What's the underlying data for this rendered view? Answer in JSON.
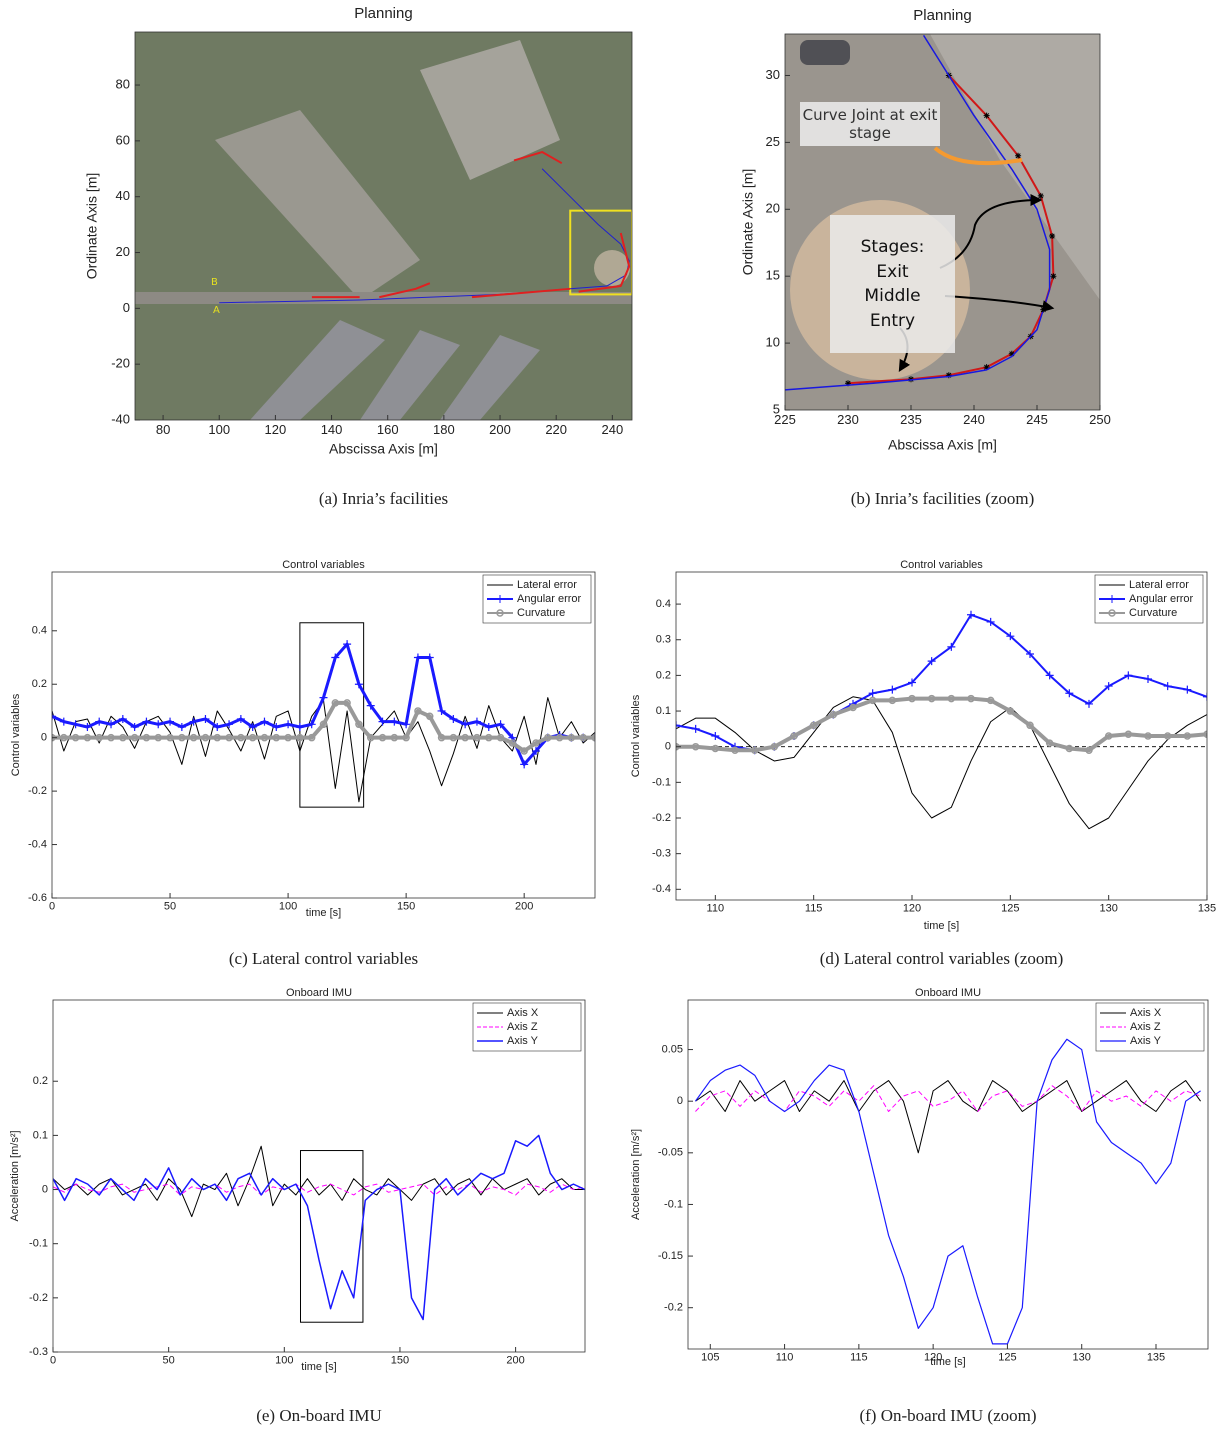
{
  "chart_data": [
    {
      "type": "line",
      "title": "Planning",
      "xlabel": "Abscissa Axis [m]",
      "ylabel": "Ordinate Axis [m]",
      "caption": "(a)  Inria’s facilities",
      "xlim": [
        70,
        247
      ],
      "ylim": [
        -40,
        99
      ],
      "xticks": [
        80,
        100,
        120,
        140,
        160,
        180,
        200,
        220,
        240
      ],
      "yticks": [
        -40,
        -20,
        0,
        20,
        40,
        60,
        80
      ],
      "annotations": [
        "A",
        "B"
      ],
      "highlight_box": {
        "color": "#f0e020",
        "x": [
          225,
          247
        ],
        "y": [
          5,
          35
        ]
      },
      "series": [
        {
          "color": "#2020d0",
          "linewidth": 1,
          "x": [
            100,
            150,
            200,
            225,
            238,
            245,
            246,
            243,
            235,
            225,
            215
          ],
          "values": [
            2,
            3,
            5,
            7,
            8,
            12,
            17,
            23,
            30,
            40,
            50
          ]
        },
        {
          "color": "#e02020",
          "linewidth": 2,
          "x": [
            133,
            150,
            null,
            157,
            170,
            175,
            null,
            190,
            225,
            null,
            228,
            243,
            246,
            243,
            null,
            205,
            215,
            222
          ],
          "values": [
            4,
            4,
            null,
            4,
            7,
            9,
            null,
            4,
            7,
            null,
            6,
            8,
            15,
            27,
            null,
            53,
            56,
            52
          ]
        }
      ]
    },
    {
      "type": "line",
      "title": "Planning",
      "xlabel": "Abscissa Axis [m]",
      "ylabel": "Ordinate Axis [m]",
      "caption": "(b)  Inria’s facilities (zoom)",
      "xlim": [
        225,
        250
      ],
      "ylim": [
        5,
        33.1
      ],
      "xticks": [
        225,
        230,
        235,
        240,
        245,
        250
      ],
      "yticks": [
        5,
        10,
        15,
        20,
        25,
        30
      ],
      "annotations": [
        "Curve Joint at exit stage",
        "Stages:",
        "Exit",
        "Middle",
        "Entry"
      ],
      "series": [
        {
          "color": "#d01818",
          "linewidth": 2,
          "marker": "*",
          "x": [
            230,
            235,
            238,
            241,
            243,
            244.5,
            245.5,
            246.3,
            246.2,
            245.3,
            243.5,
            241,
            238
          ],
          "values": [
            7,
            7.3,
            7.6,
            8.2,
            9.2,
            10.5,
            12.5,
            15,
            18,
            21,
            24,
            27,
            30
          ]
        },
        {
          "color": "#1818e0",
          "linewidth": 1.5,
          "x": [
            225,
            232,
            238,
            241,
            243,
            245,
            246,
            246,
            245,
            243,
            240,
            236
          ],
          "values": [
            6.5,
            7,
            7.5,
            8,
            9,
            11,
            14,
            17,
            20,
            23,
            27,
            33
          ]
        }
      ]
    },
    {
      "type": "line",
      "title": "Control variables",
      "xlabel": "time [s]",
      "ylabel": "Control variables",
      "caption": "(c)  Lateral control variables",
      "xlim": [
        0,
        230
      ],
      "ylim": [
        -0.6,
        0.62
      ],
      "xticks": [
        0,
        50,
        100,
        150,
        200
      ],
      "yticks": [
        -0.6,
        -0.4,
        -0.2,
        0,
        0.2,
        0.4
      ],
      "legend": "upper right",
      "highlight_box": {
        "color": "#000000",
        "x": [
          105,
          132
        ],
        "y": [
          -0.26,
          0.43
        ]
      },
      "x": [
        0,
        5,
        10,
        15,
        20,
        25,
        30,
        35,
        40,
        45,
        50,
        55,
        60,
        65,
        70,
        75,
        80,
        85,
        90,
        95,
        100,
        105,
        110,
        115,
        120,
        125,
        130,
        135,
        140,
        145,
        150,
        155,
        160,
        165,
        170,
        175,
        180,
        185,
        190,
        195,
        200,
        205,
        210,
        215,
        220,
        225,
        230
      ],
      "series": [
        {
          "name": "Lateral error",
          "color": "#000000",
          "linewidth": 1,
          "values": [
            0.1,
            -0.05,
            0.06,
            0.07,
            -0.02,
            0.08,
            0.04,
            -0.04,
            0.06,
            0.08,
            0.02,
            -0.1,
            0.08,
            -0.07,
            0.1,
            0.03,
            -0.05,
            0.06,
            -0.08,
            0.08,
            0.1,
            -0.05,
            0.08,
            0.14,
            -0.19,
            0.1,
            -0.24,
            0.0,
            0.05,
            0.1,
            0.0,
            0.06,
            -0.05,
            -0.18,
            -0.06,
            0.08,
            -0.04,
            0.12,
            0.0,
            -0.05,
            0.08,
            -0.1,
            0.15,
            0.0,
            0.06,
            -0.02,
            0.02
          ]
        },
        {
          "name": "Angular error",
          "color": "#1a1aff",
          "linewidth": 3,
          "marker": "+",
          "values": [
            0.08,
            0.06,
            0.05,
            0.04,
            0.06,
            0.05,
            0.07,
            0.04,
            0.06,
            0.05,
            0.06,
            0.04,
            0.06,
            0.07,
            0.04,
            0.05,
            0.07,
            0.04,
            0.06,
            0.04,
            0.05,
            0.04,
            0.05,
            0.15,
            0.3,
            0.35,
            0.2,
            0.12,
            0.06,
            0.06,
            0.05,
            0.3,
            0.3,
            0.1,
            0.07,
            0.05,
            0.06,
            0.04,
            0.05,
            0.0,
            -0.1,
            -0.05,
            0.0,
            0.01,
            0.0,
            0.0,
            0.0
          ]
        },
        {
          "name": "Curvature",
          "color": "#999999",
          "linewidth": 4,
          "marker": "o",
          "values": [
            0,
            0,
            0,
            0,
            0,
            0,
            0,
            0,
            0,
            0,
            0,
            0,
            0,
            0,
            0,
            0,
            0,
            0,
            0,
            0,
            0,
            0,
            0,
            0.05,
            0.13,
            0.13,
            0.05,
            0,
            0,
            0,
            0,
            0.1,
            0.08,
            0,
            0,
            0,
            0,
            0,
            0,
            -0.02,
            -0.05,
            -0.02,
            0,
            0,
            0,
            0,
            0
          ]
        }
      ]
    },
    {
      "type": "line",
      "title": "Control variables",
      "xlabel": "time [s]",
      "ylabel": "Control variables",
      "caption": "(d)  Lateral control variables (zoom)",
      "xlim": [
        108,
        135
      ],
      "ylim": [
        -0.43,
        0.49
      ],
      "xticks": [
        110,
        115,
        120,
        125,
        130,
        135
      ],
      "yticks": [
        -0.4,
        -0.3,
        -0.2,
        -0.1,
        0,
        0.1,
        0.2,
        0.3,
        0.4
      ],
      "legend": "upper right",
      "x": [
        108,
        109,
        110,
        111,
        112,
        113,
        114,
        115,
        116,
        117,
        118,
        119,
        120,
        121,
        122,
        123,
        124,
        125,
        126,
        127,
        128,
        129,
        130,
        131,
        132,
        133,
        134,
        135
      ],
      "series": [
        {
          "name": "Lateral error",
          "color": "#000000",
          "linewidth": 1,
          "values": [
            0.05,
            0.08,
            0.08,
            0.04,
            -0.01,
            -0.04,
            -0.03,
            0.04,
            0.11,
            0.14,
            0.13,
            0.04,
            -0.13,
            -0.2,
            -0.17,
            -0.04,
            0.07,
            0.11,
            0.06,
            -0.05,
            -0.16,
            -0.23,
            -0.2,
            -0.12,
            -0.04,
            0.02,
            0.06,
            0.09
          ]
        },
        {
          "name": "Angular error",
          "color": "#1a1aff",
          "linewidth": 2,
          "marker": "+",
          "values": [
            0.06,
            0.05,
            0.03,
            0.0,
            -0.01,
            0.0,
            0.03,
            0.06,
            0.09,
            0.12,
            0.15,
            0.16,
            0.18,
            0.24,
            0.28,
            0.37,
            0.35,
            0.31,
            0.26,
            0.2,
            0.15,
            0.12,
            0.17,
            0.2,
            0.19,
            0.17,
            0.16,
            0.14
          ]
        },
        {
          "name": "Curvature",
          "color": "#999999",
          "linewidth": 4,
          "marker": "o",
          "values": [
            0,
            0,
            -0.005,
            -0.01,
            -0.01,
            0,
            0.03,
            0.06,
            0.09,
            0.11,
            0.13,
            0.13,
            0.135,
            0.135,
            0.135,
            0.135,
            0.13,
            0.1,
            0.06,
            0.01,
            -0.005,
            -0.01,
            0.03,
            0.035,
            0.03,
            0.03,
            0.03,
            0.035
          ]
        }
      ]
    },
    {
      "type": "line",
      "title": "Onboard IMU",
      "xlabel": "time [s]",
      "ylabel": "Acceleration [m/s²]",
      "caption": "(e)  On-board IMU",
      "xlim": [
        0,
        230
      ],
      "ylim": [
        -0.3,
        0.35
      ],
      "xticks": [
        0,
        50,
        100,
        150,
        200
      ],
      "yticks": [
        -0.3,
        -0.2,
        -0.1,
        0,
        0.1,
        0.2
      ],
      "legend": "upper right",
      "highlight_box": {
        "color": "#000000",
        "x": [
          107,
          134
        ],
        "y": [
          -0.245,
          0.072
        ]
      },
      "x": [
        0,
        5,
        10,
        15,
        20,
        25,
        30,
        35,
        40,
        45,
        50,
        55,
        60,
        65,
        70,
        75,
        80,
        85,
        90,
        95,
        100,
        105,
        110,
        115,
        120,
        125,
        130,
        135,
        140,
        145,
        150,
        155,
        160,
        165,
        170,
        175,
        180,
        185,
        190,
        195,
        200,
        205,
        210,
        215,
        220,
        225,
        230
      ],
      "series": [
        {
          "name": "Axis X",
          "color": "#000000",
          "linewidth": 1,
          "values": [
            0.02,
            0,
            0.01,
            -0.01,
            0.01,
            0.02,
            -0.01,
            0.0,
            0.01,
            -0.02,
            0.02,
            0.0,
            -0.05,
            0.01,
            0.0,
            0.03,
            -0.03,
            0.02,
            0.08,
            -0.03,
            0.01,
            -0.01,
            0.02,
            -0.01,
            0.01,
            -0.02,
            0.02,
            0.0,
            -0.01,
            0.02,
            0.0,
            -0.02,
            0.01,
            0.02,
            -0.01,
            0.01,
            0.02,
            -0.01,
            0.02,
            0.0,
            0.01,
            0.02,
            -0.01,
            0.01,
            0.02,
            0.0,
            0.0
          ]
        },
        {
          "name": "Axis Z",
          "color": "#ff00ff",
          "linewidth": 1,
          "linestyle": "dashed",
          "values": [
            0.005,
            -0.005,
            0.01,
            0.0,
            -0.005,
            0.005,
            0.01,
            -0.005,
            0.0,
            0.005,
            0.01,
            -0.01,
            0.005,
            0.0,
            0.01,
            -0.005,
            0.005,
            0.01,
            -0.01,
            0.005,
            0.0,
            0.01,
            -0.005,
            0.005,
            0.01,
            0.0,
            -0.01,
            0.005,
            0.01,
            -0.005,
            0.0,
            0.005,
            0.01,
            -0.01,
            0.005,
            0.0,
            0.01,
            -0.005,
            0.005,
            0.0,
            -0.01,
            0.01,
            0.005,
            -0.005,
            0.01,
            0.0,
            0.005
          ]
        },
        {
          "name": "Axis Y",
          "color": "#1a1aff",
          "linewidth": 1.5,
          "values": [
            0.02,
            -0.02,
            0.02,
            0.01,
            -0.01,
            0.02,
            0.0,
            -0.02,
            0.02,
            0.0,
            0.04,
            -0.01,
            0.02,
            0.0,
            0.01,
            -0.02,
            0.02,
            0.03,
            -0.01,
            0.02,
            0.0,
            0.01,
            -0.03,
            -0.13,
            -0.22,
            -0.15,
            -0.2,
            -0.02,
            0.0,
            0.01,
            0.0,
            -0.2,
            -0.24,
            0.0,
            0.02,
            -0.01,
            0.01,
            0.03,
            0.02,
            0.03,
            0.09,
            0.08,
            0.1,
            0.03,
            0.0,
            0.01,
            0.0
          ]
        }
      ]
    },
    {
      "type": "line",
      "title": "Onboard IMU",
      "xlabel": "time [s]",
      "ylabel": "Acceleration [m/s²]",
      "caption": "(f)  On-board IMU (zoom)",
      "xlim": [
        103.5,
        138.5
      ],
      "ylim": [
        -0.24,
        0.098
      ],
      "xticks": [
        105,
        110,
        115,
        120,
        125,
        130,
        135
      ],
      "yticks": [
        -0.2,
        -0.15,
        -0.1,
        -0.05,
        0,
        0.05
      ],
      "legend": "upper right",
      "x": [
        104,
        105,
        106,
        107,
        108,
        109,
        110,
        111,
        112,
        113,
        114,
        115,
        116,
        117,
        118,
        119,
        120,
        121,
        122,
        123,
        124,
        125,
        126,
        127,
        128,
        129,
        130,
        131,
        132,
        133,
        134,
        135,
        136,
        137,
        138
      ],
      "series": [
        {
          "name": "Axis X",
          "color": "#000000",
          "linewidth": 1,
          "values": [
            0.0,
            0.01,
            -0.01,
            0.02,
            0.0,
            0.01,
            0.02,
            -0.01,
            0.01,
            0.0,
            0.02,
            -0.01,
            0.01,
            0.02,
            0.0,
            -0.05,
            0.01,
            0.02,
            0.0,
            -0.01,
            0.02,
            0.01,
            -0.01,
            0.0,
            0.01,
            0.02,
            -0.01,
            0.0,
            0.01,
            0.02,
            0.0,
            -0.01,
            0.01,
            0.02,
            0.0
          ]
        },
        {
          "name": "Axis Z",
          "color": "#ff00ff",
          "linewidth": 1,
          "linestyle": "dashed",
          "values": [
            -0.01,
            0.005,
            0.01,
            -0.005,
            0.01,
            0.0,
            -0.01,
            0.01,
            0.005,
            -0.005,
            0.01,
            0.0,
            0.015,
            -0.01,
            0.005,
            0.01,
            -0.005,
            0.0,
            0.01,
            -0.01,
            0.005,
            0.01,
            -0.005,
            0.0,
            0.015,
            0.005,
            -0.01,
            0.01,
            0.0,
            0.005,
            -0.005,
            0.01,
            0.0,
            0.01,
            0.005
          ]
        },
        {
          "name": "Axis Y",
          "color": "#1a1aff",
          "linewidth": 1.2,
          "values": [
            0.0,
            0.02,
            0.03,
            0.035,
            0.025,
            0.0,
            -0.01,
            0.0,
            0.02,
            0.035,
            0.03,
            -0.01,
            -0.07,
            -0.13,
            -0.17,
            -0.22,
            -0.2,
            -0.15,
            -0.14,
            -0.19,
            -0.235,
            -0.235,
            -0.2,
            0.0,
            0.04,
            0.06,
            0.05,
            -0.02,
            -0.04,
            -0.05,
            -0.06,
            -0.08,
            -0.06,
            0.0,
            0.01
          ]
        }
      ]
    }
  ]
}
